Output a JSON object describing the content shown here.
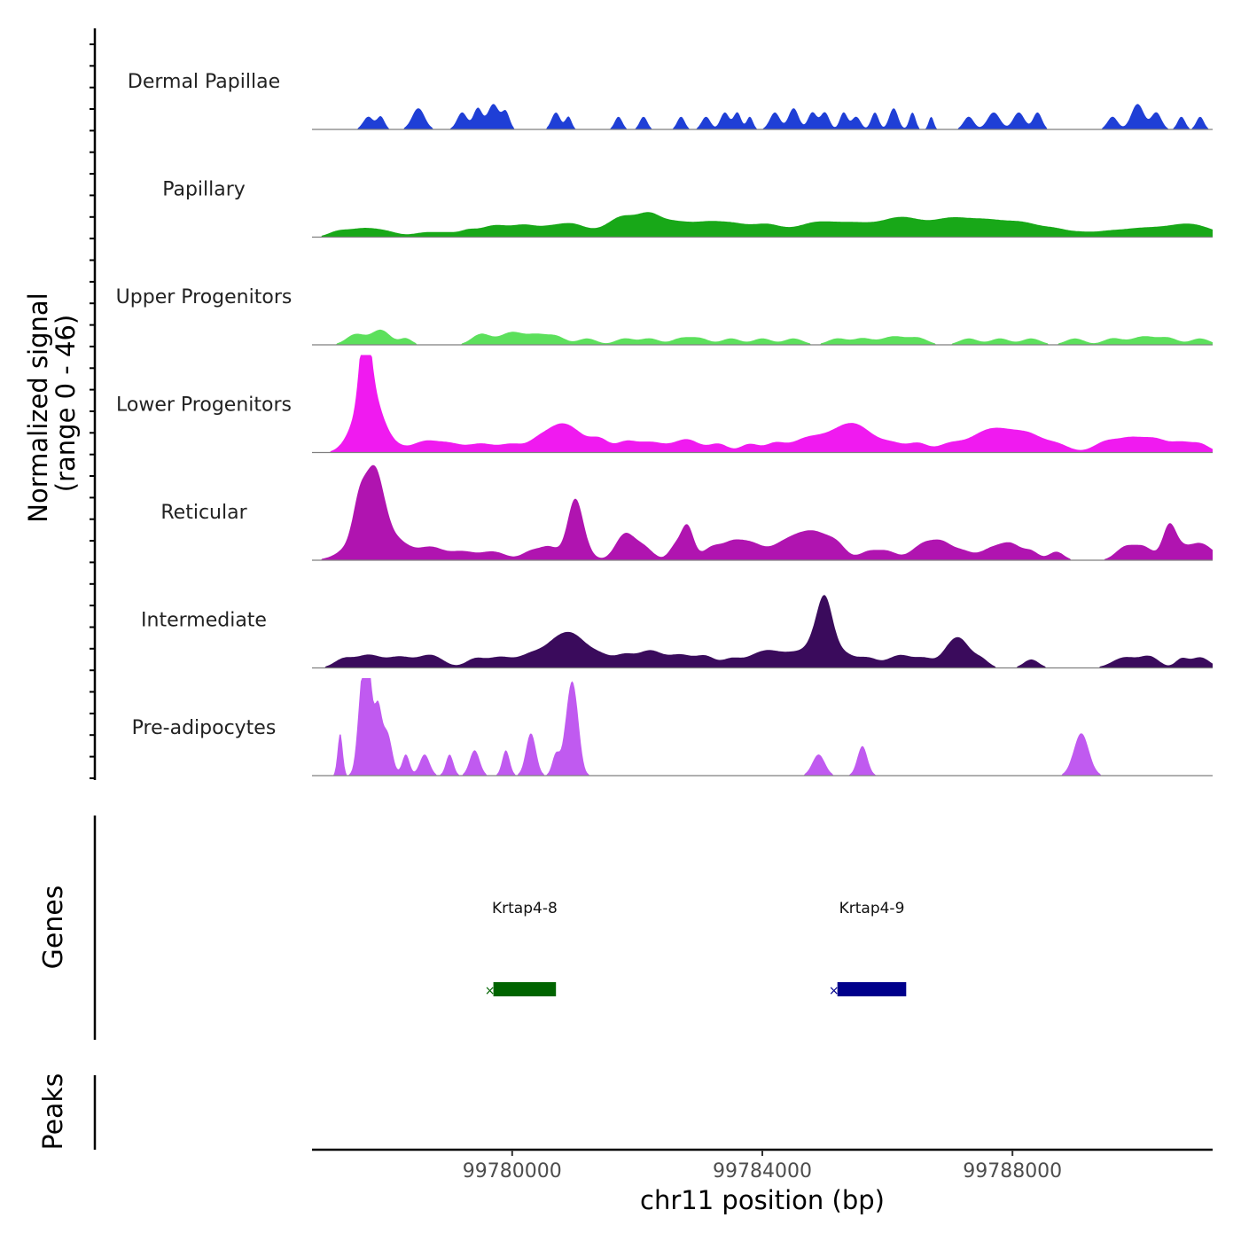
{
  "chart_data": {
    "type": "area",
    "chromosome": "chr11",
    "xlim": [
      99776800,
      99791200
    ],
    "x_ticks": [
      99780000,
      99784000,
      99788000
    ],
    "x_tick_labels": [
      "99780000",
      "99784000",
      "99788000"
    ],
    "xlabel": "chr11 position (bp)",
    "ylabel_line1": "Normalized signal",
    "ylabel_line2": "(range 0 - 46)",
    "ylim": [
      0,
      46
    ],
    "tracks": [
      {
        "name": "Dermal Papillae",
        "color": "#1f3fd6",
        "peaks": [
          [
            99777700,
            80,
            6
          ],
          [
            99777900,
            60,
            6
          ],
          [
            99778500,
            100,
            10
          ],
          [
            99779200,
            80,
            8
          ],
          [
            99779450,
            70,
            10
          ],
          [
            99779700,
            90,
            12
          ],
          [
            99779900,
            60,
            8
          ],
          [
            99780700,
            70,
            8
          ],
          [
            99780900,
            50,
            6
          ],
          [
            99781700,
            60,
            6
          ],
          [
            99782100,
            60,
            6
          ],
          [
            99782700,
            60,
            6
          ],
          [
            99783100,
            70,
            6
          ],
          [
            99783400,
            70,
            8
          ],
          [
            99783600,
            60,
            8
          ],
          [
            99783800,
            50,
            6
          ],
          [
            99784200,
            80,
            8
          ],
          [
            99784500,
            80,
            10
          ],
          [
            99784800,
            70,
            8
          ],
          [
            99785000,
            70,
            8
          ],
          [
            99785300,
            60,
            8
          ],
          [
            99785500,
            70,
            6
          ],
          [
            99785800,
            60,
            8
          ],
          [
            99786100,
            70,
            10
          ],
          [
            99786400,
            50,
            8
          ],
          [
            99786700,
            40,
            6
          ],
          [
            99787300,
            80,
            6
          ],
          [
            99787700,
            100,
            8
          ],
          [
            99788100,
            90,
            8
          ],
          [
            99788400,
            70,
            8
          ],
          [
            99789600,
            80,
            6
          ],
          [
            99790000,
            100,
            12
          ],
          [
            99790300,
            80,
            8
          ],
          [
            99790700,
            60,
            6
          ],
          [
            99791000,
            60,
            6
          ]
        ]
      },
      {
        "name": "Papillary",
        "color": "#18a818",
        "peaks": [
          [
            99777200,
            150,
            2
          ],
          [
            99777600,
            250,
            4
          ],
          [
            99778000,
            200,
            2
          ],
          [
            99778600,
            200,
            2
          ],
          [
            99779000,
            200,
            2
          ],
          [
            99779300,
            120,
            2
          ],
          [
            99779600,
            200,
            3
          ],
          [
            99779900,
            250,
            4
          ],
          [
            99780200,
            150,
            2
          ],
          [
            99780600,
            300,
            5
          ],
          [
            99781000,
            200,
            4
          ],
          [
            99781400,
            200,
            2
          ],
          [
            99781700,
            180,
            4
          ],
          [
            99782000,
            300,
            8
          ],
          [
            99782200,
            150,
            3
          ],
          [
            99782500,
            250,
            4
          ],
          [
            99782900,
            300,
            5
          ],
          [
            99783200,
            200,
            3
          ],
          [
            99783500,
            200,
            3
          ],
          [
            99783800,
            300,
            4
          ],
          [
            99784100,
            200,
            3
          ],
          [
            99784500,
            250,
            3
          ],
          [
            99784800,
            200,
            3
          ],
          [
            99785100,
            250,
            5
          ],
          [
            99785500,
            250,
            4
          ],
          [
            99785900,
            300,
            4
          ],
          [
            99786200,
            250,
            5
          ],
          [
            99786500,
            250,
            4
          ],
          [
            99786900,
            250,
            4
          ],
          [
            99787200,
            300,
            6
          ],
          [
            99787600,
            250,
            4
          ],
          [
            99788000,
            300,
            5
          ],
          [
            99788300,
            250,
            3
          ],
          [
            99788700,
            200,
            3
          ],
          [
            99789100,
            200,
            2
          ],
          [
            99789500,
            200,
            2
          ],
          [
            99789900,
            250,
            3
          ],
          [
            99790300,
            250,
            3
          ],
          [
            99790700,
            250,
            3
          ],
          [
            99791000,
            300,
            4
          ]
        ]
      },
      {
        "name": "Upper Progenitors",
        "color": "#5ce05c",
        "peaks": [
          [
            99777500,
            150,
            5
          ],
          [
            99777900,
            150,
            7
          ],
          [
            99778300,
            100,
            3
          ],
          [
            99779500,
            150,
            5
          ],
          [
            99780000,
            200,
            6
          ],
          [
            99780400,
            150,
            4
          ],
          [
            99780700,
            150,
            4
          ],
          [
            99781200,
            150,
            3
          ],
          [
            99781800,
            150,
            3
          ],
          [
            99782200,
            150,
            3
          ],
          [
            99782700,
            150,
            3
          ],
          [
            99783000,
            150,
            3
          ],
          [
            99783500,
            150,
            3
          ],
          [
            99784000,
            150,
            3
          ],
          [
            99784500,
            150,
            3
          ],
          [
            99785200,
            150,
            3
          ],
          [
            99785600,
            150,
            3
          ],
          [
            99786100,
            200,
            4
          ],
          [
            99786500,
            150,
            3
          ],
          [
            99787300,
            150,
            3
          ],
          [
            99787800,
            150,
            3
          ],
          [
            99788300,
            150,
            3
          ],
          [
            99789000,
            150,
            3
          ],
          [
            99789600,
            150,
            3
          ],
          [
            99790100,
            200,
            4
          ],
          [
            99790500,
            150,
            3
          ],
          [
            99791000,
            150,
            3
          ]
        ]
      },
      {
        "name": "Lower Progenitors",
        "color": "#f01af0",
        "peaks": [
          [
            99777400,
            150,
            4
          ],
          [
            99777650,
            80,
            36
          ],
          [
            99777700,
            180,
            30
          ],
          [
            99778000,
            200,
            5
          ],
          [
            99778600,
            200,
            5
          ],
          [
            99779000,
            200,
            4
          ],
          [
            99779500,
            200,
            4
          ],
          [
            99780000,
            200,
            4
          ],
          [
            99780400,
            150,
            4
          ],
          [
            99780700,
            200,
            10
          ],
          [
            99781000,
            200,
            8
          ],
          [
            99781400,
            150,
            6
          ],
          [
            99781800,
            150,
            4
          ],
          [
            99782200,
            250,
            5
          ],
          [
            99782800,
            200,
            6
          ],
          [
            99783300,
            150,
            4
          ],
          [
            99783800,
            150,
            4
          ],
          [
            99784200,
            150,
            4
          ],
          [
            99784700,
            250,
            6
          ],
          [
            99785300,
            300,
            10
          ],
          [
            99785600,
            250,
            6
          ],
          [
            99786100,
            200,
            4
          ],
          [
            99786500,
            150,
            4
          ],
          [
            99787000,
            200,
            4
          ],
          [
            99787500,
            250,
            6
          ],
          [
            99787900,
            300,
            9
          ],
          [
            99788300,
            200,
            5
          ],
          [
            99788700,
            200,
            4
          ],
          [
            99789500,
            200,
            5
          ],
          [
            99789900,
            200,
            6
          ],
          [
            99790300,
            200,
            6
          ],
          [
            99790700,
            150,
            4
          ],
          [
            99791000,
            150,
            4
          ]
        ]
      },
      {
        "name": "Reticular",
        "color": "#b014b0",
        "peaks": [
          [
            99777550,
            100,
            14
          ],
          [
            99777800,
            150,
            30
          ],
          [
            99777700,
            300,
            14
          ],
          [
            99778200,
            200,
            6
          ],
          [
            99778700,
            200,
            6
          ],
          [
            99779200,
            200,
            4
          ],
          [
            99779700,
            200,
            4
          ],
          [
            99780300,
            150,
            4
          ],
          [
            99780600,
            150,
            6
          ],
          [
            99781000,
            120,
            24
          ],
          [
            99781100,
            150,
            6
          ],
          [
            99781800,
            150,
            12
          ],
          [
            99782100,
            150,
            6
          ],
          [
            99782600,
            100,
            6
          ],
          [
            99782800,
            100,
            16
          ],
          [
            99783200,
            150,
            6
          ],
          [
            99783500,
            150,
            6
          ],
          [
            99783800,
            200,
            8
          ],
          [
            99784300,
            200,
            6
          ],
          [
            99784600,
            200,
            8
          ],
          [
            99784900,
            200,
            10
          ],
          [
            99785200,
            150,
            6
          ],
          [
            99785700,
            150,
            4
          ],
          [
            99786000,
            150,
            4
          ],
          [
            99786600,
            200,
            8
          ],
          [
            99786900,
            150,
            6
          ],
          [
            99787200,
            150,
            4
          ],
          [
            99787700,
            200,
            6
          ],
          [
            99788000,
            150,
            6
          ],
          [
            99788300,
            120,
            4
          ],
          [
            99788700,
            120,
            4
          ],
          [
            99789800,
            150,
            6
          ],
          [
            99790100,
            150,
            6
          ],
          [
            99790500,
            100,
            12
          ],
          [
            99790600,
            150,
            6
          ],
          [
            99791000,
            200,
            8
          ]
        ]
      },
      {
        "name": "Intermediate",
        "color": "#3a0b5c",
        "peaks": [
          [
            99777300,
            150,
            4
          ],
          [
            99777700,
            200,
            6
          ],
          [
            99778200,
            200,
            5
          ],
          [
            99778700,
            200,
            6
          ],
          [
            99779400,
            150,
            4
          ],
          [
            99779800,
            200,
            5
          ],
          [
            99780300,
            200,
            6
          ],
          [
            99780700,
            200,
            10
          ],
          [
            99781000,
            200,
            12
          ],
          [
            99781400,
            200,
            6
          ],
          [
            99781800,
            150,
            5
          ],
          [
            99782200,
            200,
            8
          ],
          [
            99782700,
            200,
            6
          ],
          [
            99783100,
            150,
            5
          ],
          [
            99783500,
            150,
            4
          ],
          [
            99783900,
            200,
            5
          ],
          [
            99784200,
            200,
            6
          ],
          [
            99784500,
            150,
            4
          ],
          [
            99784900,
            200,
            14
          ],
          [
            99785000,
            120,
            20
          ],
          [
            99785300,
            200,
            6
          ],
          [
            99785700,
            150,
            4
          ],
          [
            99786200,
            200,
            6
          ],
          [
            99786600,
            150,
            4
          ],
          [
            99787000,
            150,
            8
          ],
          [
            99787200,
            150,
            10
          ],
          [
            99787500,
            120,
            4
          ],
          [
            99788300,
            120,
            4
          ],
          [
            99789800,
            200,
            5
          ],
          [
            99790200,
            150,
            5
          ],
          [
            99790700,
            100,
            4
          ],
          [
            99791000,
            150,
            5
          ]
        ]
      },
      {
        "name": "Pre-adipocytes",
        "color": "#c05af0",
        "peaks": [
          [
            99777250,
            40,
            20
          ],
          [
            99777600,
            70,
            40
          ],
          [
            99777700,
            60,
            45
          ],
          [
            99777850,
            60,
            30
          ],
          [
            99778000,
            80,
            20
          ],
          [
            99778300,
            60,
            10
          ],
          [
            99778600,
            80,
            10
          ],
          [
            99779000,
            60,
            10
          ],
          [
            99779400,
            80,
            12
          ],
          [
            99779900,
            60,
            12
          ],
          [
            99780300,
            80,
            20
          ],
          [
            99780700,
            60,
            10
          ],
          [
            99780900,
            80,
            24
          ],
          [
            99781000,
            80,
            30
          ],
          [
            99784900,
            100,
            10
          ],
          [
            99785600,
            80,
            14
          ],
          [
            99789100,
            120,
            20
          ]
        ]
      }
    ],
    "genes_panel_label": "Genes",
    "genes": [
      {
        "name": "Krtap4-8",
        "start": 99779700,
        "end": 99780700,
        "color": "#006400"
      },
      {
        "name": "Krtap4-9",
        "start": 99785200,
        "end": 99786300,
        "color": "#00008b"
      }
    ],
    "peaks_panel_label": "Peaks",
    "peak_regions": []
  }
}
